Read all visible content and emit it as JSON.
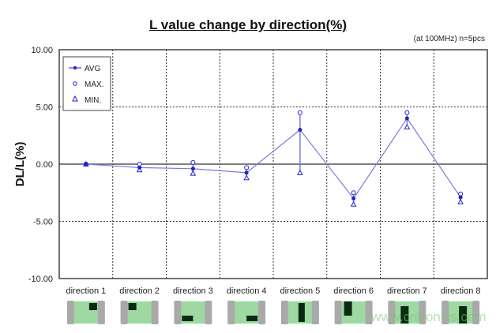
{
  "chart_data": {
    "type": "line",
    "title": "L value change by direction(%)",
    "subtitle": "(at 100MHz)  n=5pcs",
    "xlabel": "",
    "ylabel": "DL/L(%)",
    "ylim": [
      -10,
      10
    ],
    "yticks": [
      "10.00",
      "5.00",
      "0.00",
      "-5.00",
      "-10.00"
    ],
    "ytick_values": [
      10,
      5,
      0,
      -5,
      -10
    ],
    "grid": true,
    "legend_position": "top-left",
    "categories": [
      "direction 1",
      "direction 2",
      "direction 3",
      "direction 4",
      "direction 5",
      "direction 6",
      "direction 7",
      "direction 8"
    ],
    "series": [
      {
        "name": "AVG",
        "marker": "dot-line",
        "values": [
          0.0,
          -0.3,
          -0.4,
          -0.75,
          3.0,
          -3.0,
          4.0,
          -2.9
        ]
      },
      {
        "name": "MAX.",
        "marker": "circle",
        "values": [
          0.0,
          0.0,
          0.15,
          -0.3,
          4.5,
          -2.5,
          4.5,
          -2.6
        ]
      },
      {
        "name": "MIN.",
        "marker": "triangle",
        "values": [
          0.0,
          -0.5,
          -0.8,
          -1.2,
          -0.75,
          -3.5,
          3.25,
          -3.3
        ]
      }
    ],
    "colors": {
      "line": "#7b7bdc",
      "marker": "#2222cc",
      "chip_body": "#9fd8a0",
      "chip_end": "#a9a9a9",
      "chip_mark": "#0a2a12"
    }
  },
  "watermark": "www.cntronics.com"
}
